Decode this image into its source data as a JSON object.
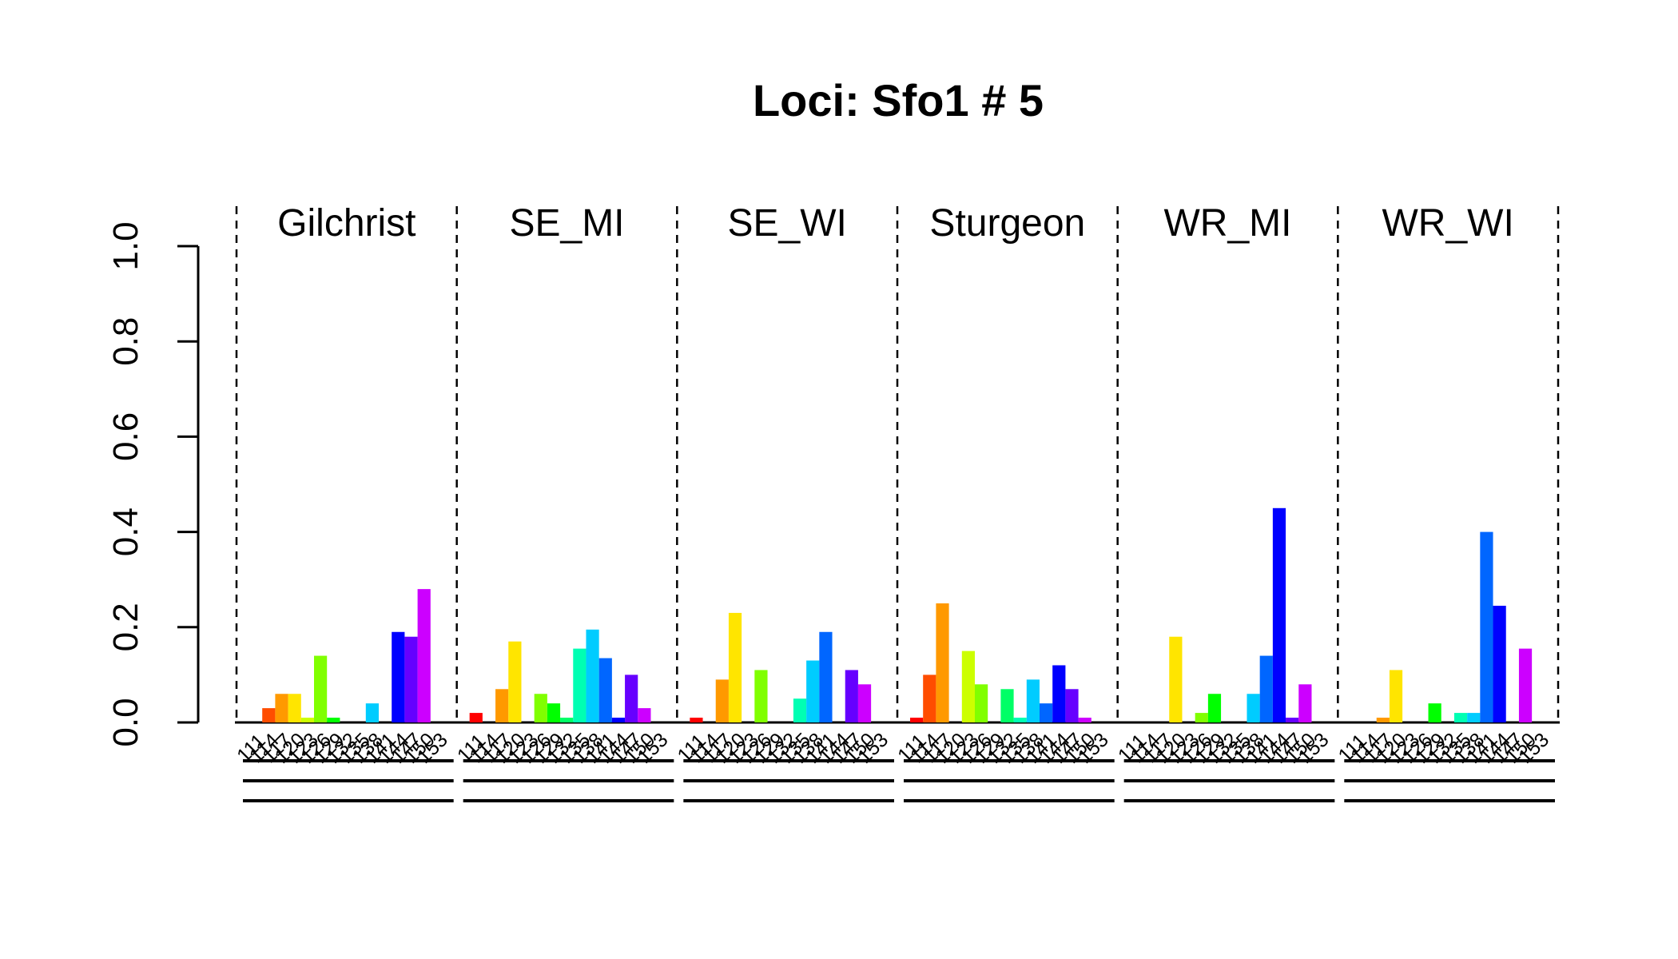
{
  "chart_data": {
    "type": "bar",
    "title": "Loci: Sfo1 # 5",
    "xlabel": "",
    "ylabel": "",
    "ylim": [
      0,
      1
    ],
    "y_ticks": [
      "0.0",
      "0.2",
      "0.4",
      "0.6",
      "0.8",
      "1.0"
    ],
    "grid": false,
    "legend": "none",
    "categories": [
      "111",
      "114",
      "117",
      "120",
      "123",
      "126",
      "129",
      "132",
      "135",
      "138",
      "141",
      "144",
      "147",
      "150",
      "153"
    ],
    "colors": [
      "#FF0000",
      "#FF4D00",
      "#FF9900",
      "#FFE500",
      "#CCFF00",
      "#80FF00",
      "#00FF00",
      "#00FF66",
      "#00FFB3",
      "#00CCFF",
      "#0066FF",
      "#0000FF",
      "#6600FF",
      "#CC00FF",
      "#FF00CC"
    ],
    "series": [
      {
        "name": "Gilchrist",
        "values": [
          0,
          0.03,
          0.06,
          0.06,
          0.01,
          0.14,
          0.01,
          0,
          0,
          0.04,
          0,
          0.19,
          0.18,
          0.28,
          0
        ]
      },
      {
        "name": "SE_MI",
        "values": [
          0.02,
          0,
          0.07,
          0.17,
          0,
          0.06,
          0.04,
          0.01,
          0.155,
          0.195,
          0.135,
          0.01,
          0.1,
          0.03,
          0
        ]
      },
      {
        "name": "SE_WI",
        "values": [
          0.01,
          0,
          0.09,
          0.23,
          0,
          0.11,
          0,
          0,
          0.05,
          0.13,
          0.19,
          0,
          0.11,
          0.08,
          0
        ]
      },
      {
        "name": "Sturgeon",
        "values": [
          0.01,
          0.1,
          0.25,
          0,
          0.15,
          0.08,
          0,
          0.07,
          0.01,
          0.09,
          0.04,
          0.12,
          0.07,
          0.01,
          0
        ]
      },
      {
        "name": "WR_MI",
        "values": [
          0,
          0,
          0,
          0.18,
          0,
          0.02,
          0.06,
          0,
          0,
          0.06,
          0.14,
          0.45,
          0.01,
          0.08,
          0
        ]
      },
      {
        "name": "WR_WI",
        "values": [
          0,
          0,
          0.01,
          0.11,
          0,
          0,
          0.04,
          0,
          0.02,
          0.02,
          0.4,
          0.245,
          0,
          0.155,
          0
        ]
      }
    ]
  }
}
